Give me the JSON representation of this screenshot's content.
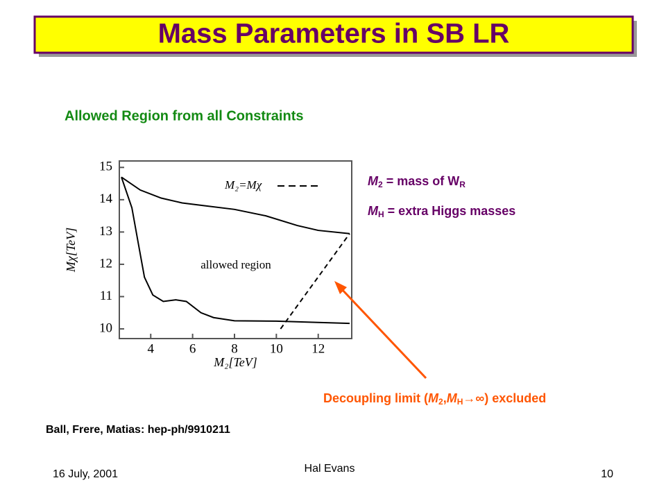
{
  "title": "Mass Parameters in SB LR",
  "subtitle": "Allowed Region from all Constraints",
  "chart_data": {
    "type": "line",
    "xlabel": "M₂[TeV]",
    "ylabel": "Mχ[TeV]",
    "xlim": [
      2.5,
      13.6
    ],
    "ylim": [
      9.7,
      15.2
    ],
    "xticks": [
      4,
      6,
      8,
      10,
      12
    ],
    "yticks": [
      10,
      11,
      12,
      13,
      14,
      15
    ],
    "annotation": "allowed region",
    "series": [
      {
        "color": "#000000",
        "x": [
          2.6,
          3.5,
          4.5,
          5.5,
          6.5,
          8,
          9.5,
          11,
          12,
          13.5
        ],
        "values": [
          14.7,
          14.3,
          14.05,
          13.9,
          13.82,
          13.7,
          13.5,
          13.2,
          13.05,
          12.95
        ]
      },
      {
        "color": "#000000",
        "x": [
          2.6,
          3.1,
          3.4,
          3.7,
          4.1,
          4.6,
          5.2,
          5.7,
          6.4,
          7,
          8,
          10,
          12,
          13.5
        ],
        "values": [
          14.7,
          13.75,
          12.67,
          11.6,
          11.05,
          10.85,
          10.9,
          10.85,
          10.5,
          10.35,
          10.25,
          10.24,
          10.2,
          10.17
        ]
      },
      {
        "name": "M₂=Mχ",
        "color": "#000000",
        "dashed": true,
        "x": [
          10.2,
          13.5
        ],
        "values": [
          10.0,
          12.95
        ]
      }
    ]
  },
  "notes": [
    [
      "M",
      "2",
      " = mass of W",
      "R"
    ],
    [
      "M",
      "H",
      " = extra Higgs masses"
    ]
  ],
  "arrow_caption": [
    "Decoupling limit (",
    "M",
    "2",
    ",",
    "M",
    "H",
    "→∞) excluded"
  ],
  "citation": "Ball, Frere, Matias: hep-ph/9910211",
  "footer": {
    "date": "16 July, 2001",
    "author": "Hal Evans",
    "page": "10"
  }
}
